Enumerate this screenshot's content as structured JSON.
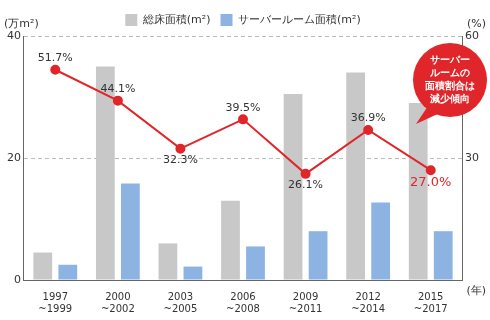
{
  "chart_data": {
    "type": "bar",
    "categories": [
      "1997\n~1999",
      "2000\n~2002",
      "2003\n~2005",
      "2006\n~2008",
      "2009\n~2011",
      "2012\n~2014",
      "2015\n~2017"
    ],
    "series": [
      {
        "name": "総床面積(m²)",
        "color": "#c8c8c8",
        "values": [
          4.5,
          35,
          6,
          13,
          30.5,
          34,
          29
        ]
      },
      {
        "name": "サーバールーム面積(m²)",
        "color": "#8db3e2",
        "values": [
          2.5,
          15.8,
          2.2,
          5.5,
          8,
          12.7,
          8
        ]
      },
      {
        "type": "line",
        "axis": "y2",
        "color": "#e0262b",
        "marker": "circle",
        "line_style": "solid",
        "data_labels": true,
        "values": [
          51.7,
          44.1,
          32.3,
          39.5,
          26.1,
          36.9,
          27.0
        ],
        "value_labels": [
          "51.7%",
          "44.1%",
          "32.3%",
          "39.5%",
          "26.1%",
          "36.9%",
          "27.0%"
        ]
      }
    ],
    "ylabel": "(万m²)",
    "y2label": "(%)",
    "xlabel": "(年)",
    "ylim": [
      0,
      40
    ],
    "yticks": [
      0,
      20,
      40
    ],
    "y2lim": [
      0,
      60
    ],
    "y2ticks": [
      30,
      60
    ],
    "grid": true,
    "legend": "top",
    "annotation": [
      "サーバー",
      "ルームの",
      "面積割合は",
      "減少傾向"
    ]
  }
}
